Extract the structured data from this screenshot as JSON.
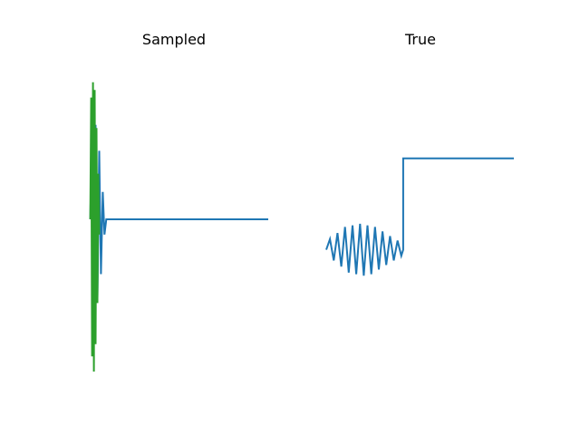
{
  "chart_data": [
    {
      "type": "line",
      "title": "Sampled",
      "axes_visible": false,
      "xlim": [
        -0.1,
        1.0
      ],
      "ylim": [
        -1.0,
        1.0
      ],
      "colors": {
        "blue": "#1f77b4",
        "green": "#2ca02c"
      },
      "series": [
        {
          "color": "blue",
          "x": [
            0.0,
            0.01,
            0.02,
            0.03,
            0.04,
            0.05,
            0.06,
            0.07,
            0.08,
            0.09,
            1.0
          ],
          "y": [
            0.0,
            0.55,
            -0.48,
            0.62,
            -0.52,
            0.45,
            -0.36,
            0.18,
            -0.1,
            0.0,
            0.0
          ]
        },
        {
          "color": "green",
          "x": [
            0.0,
            0.005,
            0.01,
            0.015,
            0.02,
            0.025,
            0.03,
            0.035,
            0.04,
            0.045,
            0.05
          ],
          "y": [
            0.0,
            0.8,
            -0.9,
            0.9,
            -1.0,
            0.85,
            -0.82,
            0.6,
            -0.55,
            0.3,
            -0.1
          ]
        }
      ]
    },
    {
      "type": "line",
      "title": "True",
      "axes_visible": false,
      "xlim": [
        0.0,
        1.0
      ],
      "ylim": [
        -1.0,
        1.0
      ],
      "colors": {
        "blue": "#1f77b4"
      },
      "series": [
        {
          "color": "blue",
          "x": [
            0.0,
            0.02,
            0.04,
            0.06,
            0.08,
            0.1,
            0.12,
            0.14,
            0.16,
            0.18,
            0.2,
            0.22,
            0.24,
            0.26,
            0.28,
            0.3,
            0.32,
            0.34,
            0.36,
            0.38,
            0.4,
            0.41,
            0.41,
            1.0
          ],
          "y": [
            -0.2,
            -0.13,
            -0.27,
            -0.09,
            -0.31,
            -0.05,
            -0.35,
            -0.04,
            -0.36,
            -0.03,
            -0.37,
            -0.04,
            -0.36,
            -0.05,
            -0.33,
            -0.08,
            -0.3,
            -0.11,
            -0.27,
            -0.14,
            -0.24,
            -0.2,
            0.4,
            0.4
          ]
        }
      ]
    }
  ]
}
